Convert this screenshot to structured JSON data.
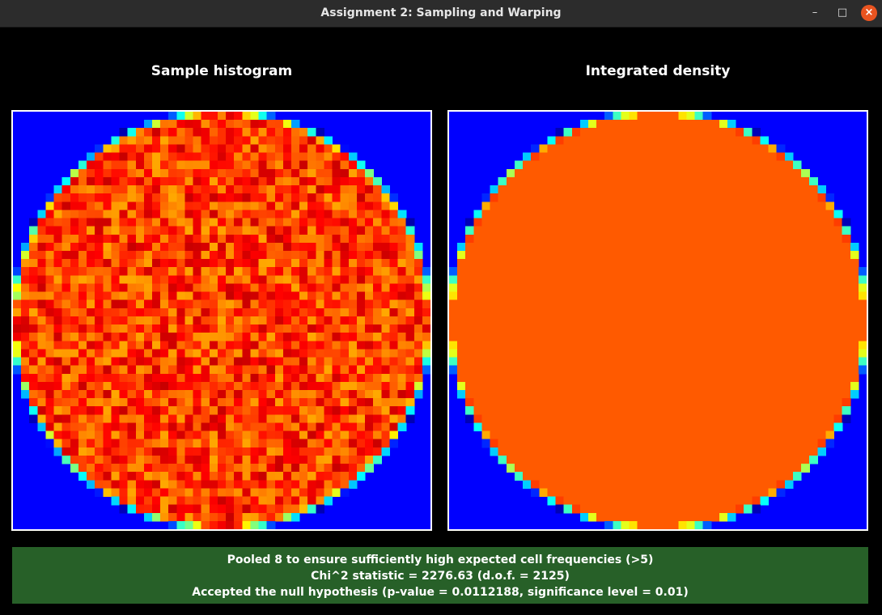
{
  "window": {
    "title": "Assignment 2: Sampling and Warping",
    "minimize_icon": "minimize-icon",
    "maximize_icon": "maximize-icon",
    "close_icon": "close-icon"
  },
  "panels": {
    "left_title": "Sample histogram",
    "right_title": "Integrated density"
  },
  "colors": {
    "background_blue": "#0000ff",
    "density_orange": "#ff5a00",
    "status_green": "#276028"
  },
  "status": {
    "line1": "Pooled 8 to ensure sufficiently high expected cell frequencies (>5)",
    "line2": "Chi^2 statistic = 2276.63 (d.o.f. = 2125)",
    "line3": "Accepted the null hypothesis (p-value = 0.0112188, significance level = 0.01)"
  }
}
